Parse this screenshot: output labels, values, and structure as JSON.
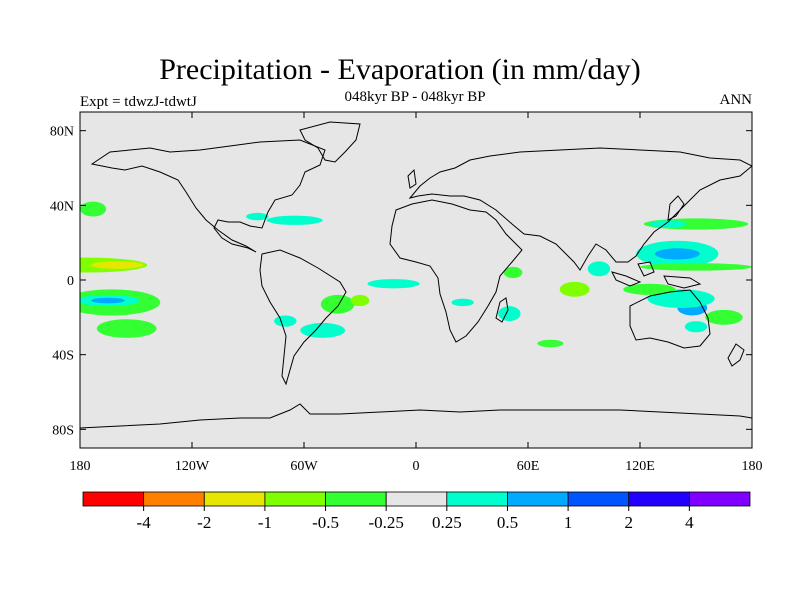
{
  "header": {
    "title": "Precipitation - Evaporation (in mm/day)",
    "subtitle": "048kyr BP - 048kyr BP",
    "left_label": "Expt = tdwzJ-tdwtJ",
    "right_label": "ANN"
  },
  "map": {
    "projection": "cylindrical-equidistant",
    "lon_range": [
      -180,
      180
    ],
    "lat_range": [
      -90,
      90
    ],
    "lon_ticks": [
      {
        "value": -180,
        "label": "180"
      },
      {
        "value": -120,
        "label": "120W"
      },
      {
        "value": -60,
        "label": "60W"
      },
      {
        "value": 0,
        "label": "0"
      },
      {
        "value": 60,
        "label": "60E"
      },
      {
        "value": 120,
        "label": "120E"
      },
      {
        "value": 180,
        "label": "180"
      }
    ],
    "lat_ticks": [
      {
        "value": 80,
        "label": "80N"
      },
      {
        "value": 40,
        "label": "40N"
      },
      {
        "value": 0,
        "label": "0"
      },
      {
        "value": -40,
        "label": "40S"
      },
      {
        "value": -80,
        "label": "80S"
      }
    ],
    "background_color": "#e6e6e6",
    "coastline_color": "#000000"
  },
  "colorbar": {
    "colors": [
      "#ff0000",
      "#ff8000",
      "#e6e600",
      "#80ff00",
      "#33ff33",
      "#e6e6e6",
      "#00ffcc",
      "#00aaff",
      "#0055ff",
      "#2200ff",
      "#8000ff"
    ],
    "labels": [
      "-4",
      "-2",
      "-1",
      "-0.5",
      "-0.25",
      "0.25",
      "0.5",
      "1",
      "2",
      "4"
    ]
  },
  "regions": [
    {
      "lon": -177,
      "lat": 8,
      "rx": 33,
      "ry": 4,
      "color": "#80ff00"
    },
    {
      "lon": -160,
      "lat": 8,
      "rx": 14,
      "ry": 2,
      "color": "#e6e600"
    },
    {
      "lon": -163,
      "lat": -12,
      "rx": 26,
      "ry": 7,
      "color": "#33ff33"
    },
    {
      "lon": -165,
      "lat": -11,
      "rx": 17,
      "ry": 3,
      "color": "#00ffcc"
    },
    {
      "lon": -165,
      "lat": -11,
      "rx": 9,
      "ry": 1.5,
      "color": "#00aaff"
    },
    {
      "lon": -155,
      "lat": -26,
      "rx": 16,
      "ry": 5,
      "color": "#33ff33"
    },
    {
      "lon": -173,
      "lat": 38,
      "rx": 7,
      "ry": 4,
      "color": "#33ff33"
    },
    {
      "lon": -65,
      "lat": 32,
      "rx": 15,
      "ry": 2.5,
      "color": "#00ffcc"
    },
    {
      "lon": -85,
      "lat": 34,
      "rx": 6,
      "ry": 2,
      "color": "#00ffcc"
    },
    {
      "lon": -42,
      "lat": -13,
      "rx": 9,
      "ry": 5,
      "color": "#33ff33"
    },
    {
      "lon": -30,
      "lat": -11,
      "rx": 5,
      "ry": 3,
      "color": "#80ff00"
    },
    {
      "lon": -50,
      "lat": -27,
      "rx": 12,
      "ry": 4,
      "color": "#00ffcc"
    },
    {
      "lon": -70,
      "lat": -22,
      "rx": 6,
      "ry": 3,
      "color": "#00ffcc"
    },
    {
      "lon": -12,
      "lat": -2,
      "rx": 14,
      "ry": 2.5,
      "color": "#00ffcc"
    },
    {
      "lon": 25,
      "lat": -12,
      "rx": 6,
      "ry": 2,
      "color": "#00ffcc"
    },
    {
      "lon": 52,
      "lat": 4,
      "rx": 5,
      "ry": 3,
      "color": "#33ff33"
    },
    {
      "lon": 50,
      "lat": -18,
      "rx": 6,
      "ry": 4,
      "color": "#00ffcc"
    },
    {
      "lon": 72,
      "lat": -34,
      "rx": 7,
      "ry": 2,
      "color": "#33ff33"
    },
    {
      "lon": 85,
      "lat": -5,
      "rx": 8,
      "ry": 4,
      "color": "#80ff00"
    },
    {
      "lon": 98,
      "lat": 6,
      "rx": 6,
      "ry": 4,
      "color": "#00ffcc"
    },
    {
      "lon": 140,
      "lat": 14,
      "rx": 22,
      "ry": 7,
      "color": "#00ffcc"
    },
    {
      "lon": 140,
      "lat": 14,
      "rx": 12,
      "ry": 3,
      "color": "#00aaff"
    },
    {
      "lon": 150,
      "lat": 7,
      "rx": 30,
      "ry": 2,
      "color": "#33ff33"
    },
    {
      "lon": 150,
      "lat": 30,
      "rx": 28,
      "ry": 3,
      "color": "#33ff33"
    },
    {
      "lon": 135,
      "lat": 30,
      "rx": 10,
      "ry": 2,
      "color": "#00ffcc"
    },
    {
      "lon": 148,
      "lat": -15,
      "rx": 8,
      "ry": 4,
      "color": "#00aaff"
    },
    {
      "lon": 142,
      "lat": -10,
      "rx": 18,
      "ry": 5,
      "color": "#00ffcc"
    },
    {
      "lon": 125,
      "lat": -5,
      "rx": 14,
      "ry": 3,
      "color": "#33ff33"
    },
    {
      "lon": 165,
      "lat": -20,
      "rx": 10,
      "ry": 4,
      "color": "#33ff33"
    },
    {
      "lon": 150,
      "lat": -25,
      "rx": 6,
      "ry": 3,
      "color": "#00ffcc"
    }
  ]
}
